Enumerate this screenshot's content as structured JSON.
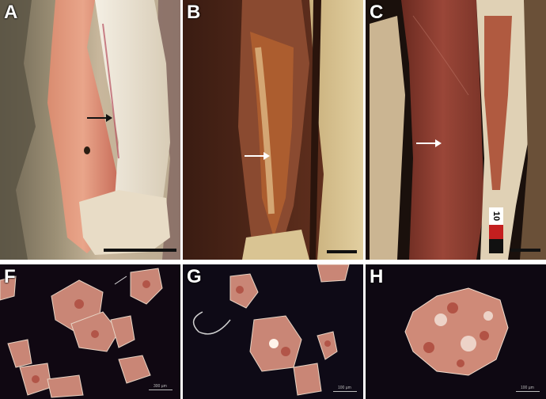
{
  "panels": {
    "A": {
      "label": "A"
    },
    "B": {
      "label": "B"
    },
    "C": {
      "label": "C"
    },
    "F": {
      "label": "F",
      "scale_text": "300 µm"
    },
    "G": {
      "label": "G",
      "scale_text": "100 µm"
    },
    "H": {
      "label": "H",
      "scale_text": "100 µm"
    }
  },
  "ruler": {
    "number": "10"
  },
  "colors": {
    "pigment_red": "#b8433a",
    "calcite_white": "#e8dfcf",
    "micro_background": "#100812"
  }
}
